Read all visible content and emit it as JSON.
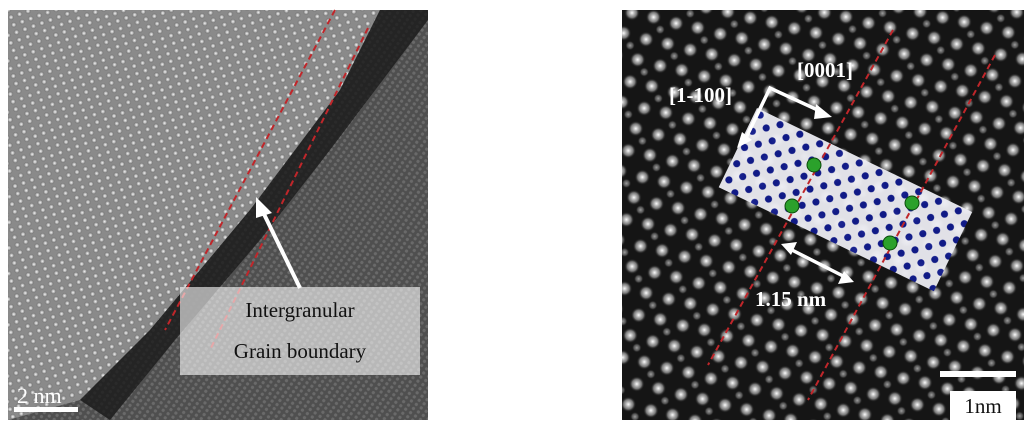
{
  "left_panel": {
    "annotation_lines": [
      "Intergranular",
      "Grain boundary"
    ],
    "scale_bar": "2 nm"
  },
  "right_panel": {
    "direction_a": "[0001]",
    "direction_b": "[1-100]",
    "spacing": "1.15 nm",
    "scale_bar": "1nm"
  }
}
